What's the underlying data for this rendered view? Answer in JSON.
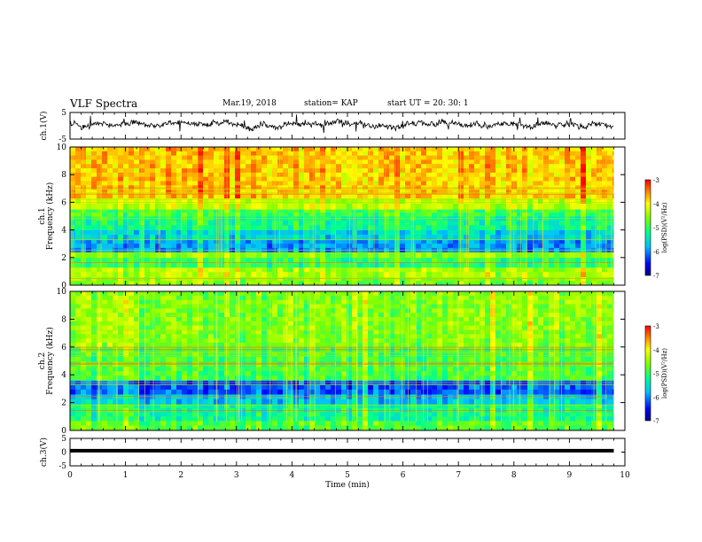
{
  "header": {
    "title": "VLF Spectra",
    "date": "Mar.19, 2018",
    "station": "station= KAP",
    "start": "start  UT =   20: 30: 1"
  },
  "chart_data": [
    {
      "type": "line",
      "panel": "ch1-waveform",
      "ylabel": "ch.1(V)",
      "ylim": [
        -5,
        5
      ],
      "yticks": [
        "5",
        "-5"
      ],
      "x_range_min": [
        0,
        9.8
      ],
      "baseline_v": 0.4,
      "amplitude_v": 1.6
    },
    {
      "type": "heatmap",
      "panel": "ch1-spectrogram",
      "ylabel": "Frequency (kHz)",
      "channel_label": "ch.1",
      "ylim": [
        0,
        10
      ],
      "yticks": [
        "0",
        "2",
        "4",
        "6",
        "8",
        "10"
      ],
      "colorbar": {
        "label": "log(PSD)(V²/Hz)",
        "range": [
          -7,
          -3
        ],
        "ticks": [
          "-3",
          "-4",
          "-5",
          "-6",
          "-7"
        ]
      },
      "bands": [
        {
          "f": [
            0,
            0.6
          ],
          "level": -4.6
        },
        {
          "f": [
            0.6,
            1.3
          ],
          "level": -4.4
        },
        {
          "f": [
            1.3,
            2.0
          ],
          "level": -5.0
        },
        {
          "f": [
            2.0,
            2.4
          ],
          "level": -4.6
        },
        {
          "f": [
            2.4,
            3.3
          ],
          "level": -5.9
        },
        {
          "f": [
            3.3,
            4.0
          ],
          "level": -5.6
        },
        {
          "f": [
            4.0,
            5.0
          ],
          "level": -5.2
        },
        {
          "f": [
            5.0,
            5.5
          ],
          "level": -4.9
        },
        {
          "f": [
            5.5,
            6.3
          ],
          "level": -4.3
        },
        {
          "f": [
            6.3,
            10.0
          ],
          "level": -3.8
        }
      ]
    },
    {
      "type": "heatmap",
      "panel": "ch2-spectrogram",
      "ylabel": "Frequency (kHz)",
      "channel_label": "ch.2",
      "ylim": [
        0,
        10
      ],
      "yticks": [
        "0",
        "2",
        "4",
        "6",
        "8",
        "10"
      ],
      "colorbar": {
        "label": "log(PSD)(V²/Hz)",
        "range": [
          -7,
          -3
        ],
        "ticks": [
          "-3",
          "-4",
          "-5",
          "-6",
          "-7"
        ]
      },
      "bands": [
        {
          "f": [
            0,
            0.7
          ],
          "level": -4.8
        },
        {
          "f": [
            0.7,
            1.9
          ],
          "level": -5.2
        },
        {
          "f": [
            1.9,
            2.6
          ],
          "level": -5.7
        },
        {
          "f": [
            2.6,
            3.6
          ],
          "level": -6.2
        },
        {
          "f": [
            3.6,
            4.6
          ],
          "level": -4.9
        },
        {
          "f": [
            4.6,
            6.0
          ],
          "level": -4.9
        },
        {
          "f": [
            6.0,
            10.0
          ],
          "level": -4.6
        }
      ]
    },
    {
      "type": "line",
      "panel": "ch3-waveform",
      "ylabel": "ch.3(V)",
      "ylim": [
        -5,
        5
      ],
      "yticks": [
        "5",
        "0",
        "-5"
      ],
      "x_range_min": [
        0,
        9.8
      ],
      "baseline_v": 0.5,
      "amplitude_v": 0.2
    }
  ],
  "xaxis": {
    "label": "Time (min)",
    "range": [
      0,
      10
    ],
    "ticks": [
      "0",
      "1",
      "2",
      "3",
      "4",
      "5",
      "6",
      "7",
      "8",
      "9",
      "10"
    ]
  }
}
